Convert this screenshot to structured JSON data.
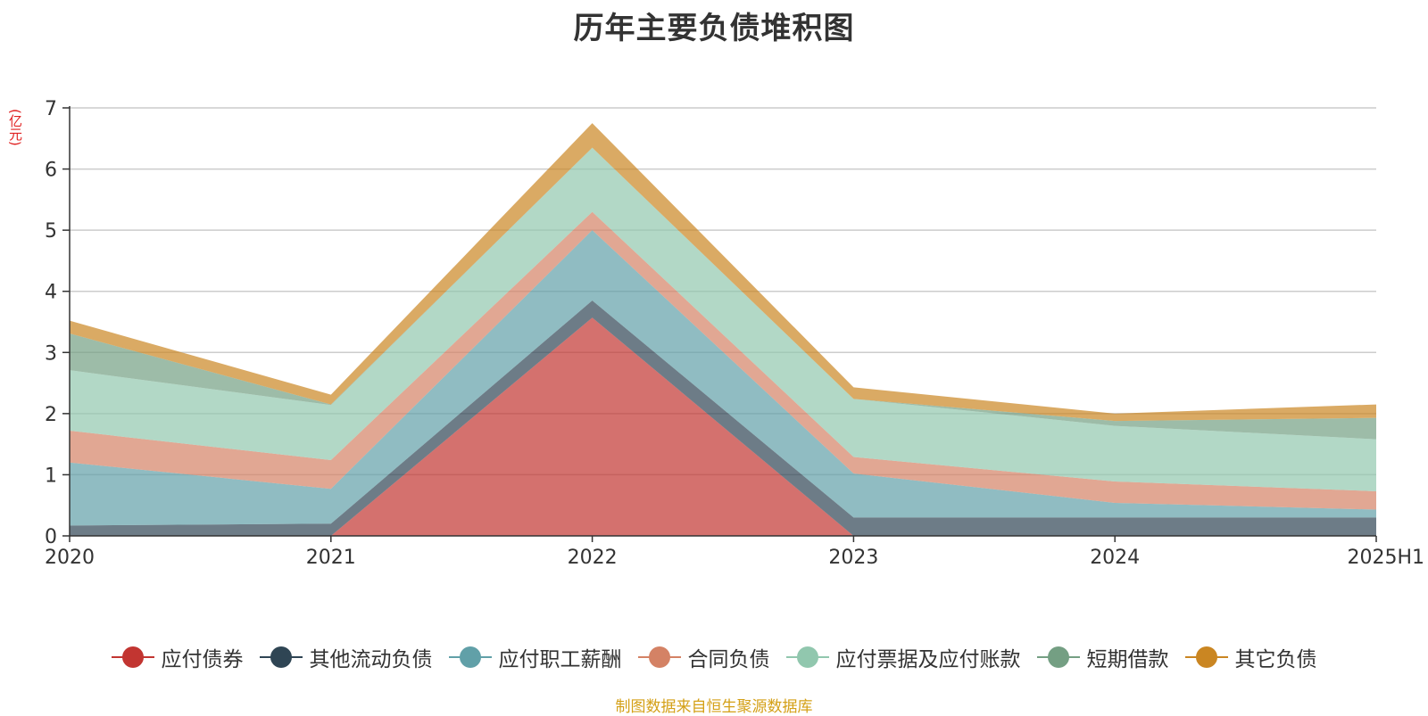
{
  "chart_data": {
    "type": "area",
    "title": "历年主要负债堆积图",
    "unit": "(亿元)",
    "stacked": true,
    "categories": [
      "2020",
      "2021",
      "2022",
      "2023",
      "2024",
      "2025H1"
    ],
    "ylim": [
      0,
      7
    ],
    "yticks": [
      "0",
      "1",
      "2",
      "3",
      "4",
      "5",
      "6",
      "7"
    ],
    "grid": true,
    "legend_position": "bottom",
    "series": [
      {
        "name": "应付债券",
        "color": "#c23531",
        "values": [
          0,
          0,
          3.57,
          0,
          0,
          0
        ]
      },
      {
        "name": "其他流动负债",
        "color": "#2f4554",
        "values": [
          0.17,
          0.2,
          0.28,
          0.3,
          0.3,
          0.3
        ]
      },
      {
        "name": "应付职工薪酬",
        "color": "#61a0a8",
        "values": [
          1.03,
          0.57,
          1.15,
          0.72,
          0.24,
          0.13
        ]
      },
      {
        "name": "合同负债",
        "color": "#d48265",
        "values": [
          0.52,
          0.47,
          0.3,
          0.27,
          0.35,
          0.3
        ]
      },
      {
        "name": "应付票据及应付账款",
        "color": "#91c7ae",
        "values": [
          0.99,
          0.9,
          1.05,
          0.95,
          0.91,
          0.85
        ]
      },
      {
        "name": "短期借款",
        "color": "#749f83",
        "values": [
          0.6,
          0.01,
          0.0,
          0.0,
          0.08,
          0.35
        ]
      },
      {
        "name": "其它负债",
        "color": "#ca8622",
        "values": [
          0.21,
          0.16,
          0.4,
          0.19,
          0.12,
          0.22
        ]
      }
    ]
  },
  "source_note": "制图数据来自恒生聚源数据库"
}
